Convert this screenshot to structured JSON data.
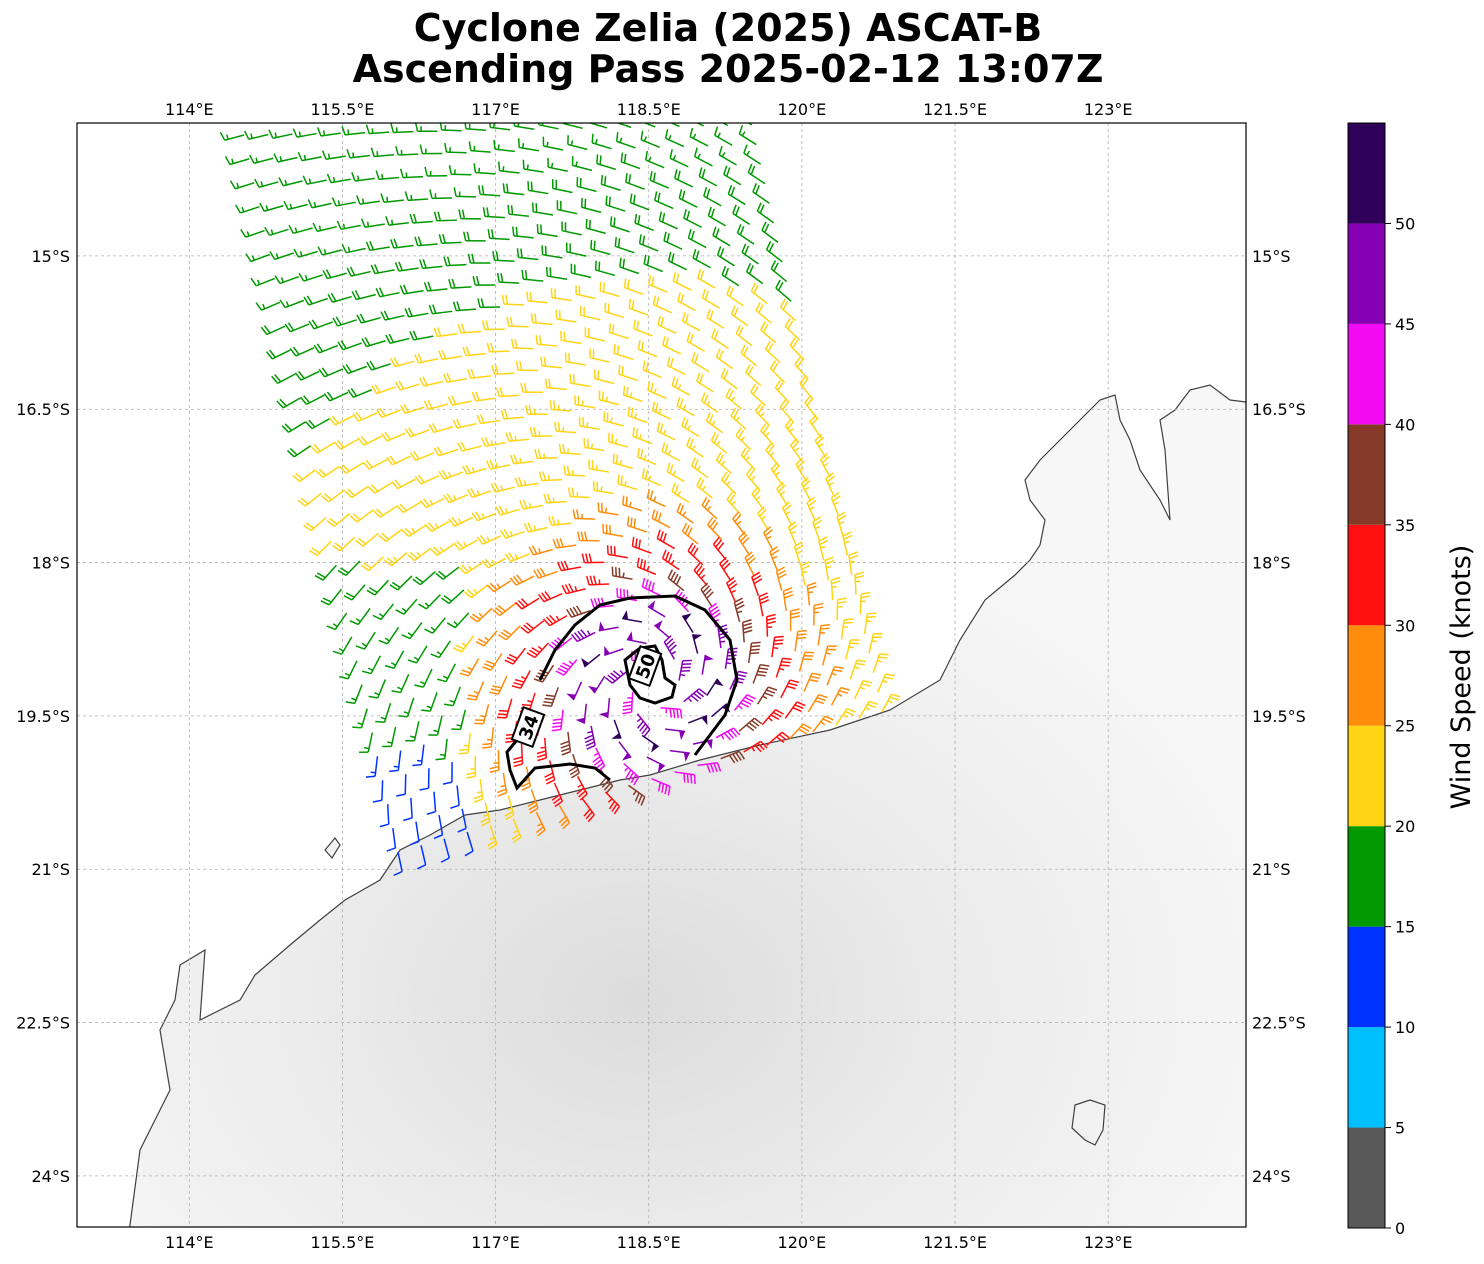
{
  "title": {
    "line1": "Cyclone Zelia (2025) ASCAT-B",
    "line2": "Ascending Pass 2025-02-12 13:07Z"
  },
  "map": {
    "lon_range": [
      112.9,
      124.35
    ],
    "lat_range": [
      -24.5,
      -13.7
    ],
    "lon_ticks": [
      114,
      115.5,
      117,
      118.5,
      120,
      121.5,
      123
    ],
    "lon_tick_labels": [
      "114°E",
      "115.5°E",
      "117°E",
      "118.5°E",
      "120°E",
      "121.5°E",
      "123°E"
    ],
    "lat_ticks": [
      -15,
      -16.5,
      -18,
      -19.5,
      -21,
      -22.5,
      -24
    ],
    "lat_tick_labels": [
      "15°S",
      "16.5°S",
      "18°S",
      "19.5°S",
      "21°S",
      "22.5°S",
      "24°S"
    ],
    "gridlines": true,
    "coastline_color": "#404040",
    "land_color": "#f2f2f2"
  },
  "storm": {
    "name": "Zelia",
    "center": {
      "lon": 118.55,
      "lat": -19.2
    },
    "contours": [
      {
        "label": "34",
        "units": "knots"
      },
      {
        "label": "50",
        "units": "knots"
      }
    ]
  },
  "wind_barbs": {
    "color_by_speed": true,
    "swath": "ASCAT-B ascending pass"
  },
  "colorbar": {
    "label": "Wind Speed (knots)",
    "tick_labels": [
      "0",
      "5",
      "10",
      "15",
      "20",
      "25",
      "30",
      "35",
      "40",
      "45",
      "50"
    ],
    "levels": [
      0,
      5,
      10,
      15,
      20,
      25,
      30,
      35,
      40,
      45,
      50,
      55
    ],
    "colors": [
      "#595959",
      "#00bfff",
      "#0033ff",
      "#009900",
      "#ffd414",
      "#ff8c0a",
      "#ff0f0f",
      "#853a27",
      "#f20af2",
      "#8500b3",
      "#2e0059"
    ]
  }
}
